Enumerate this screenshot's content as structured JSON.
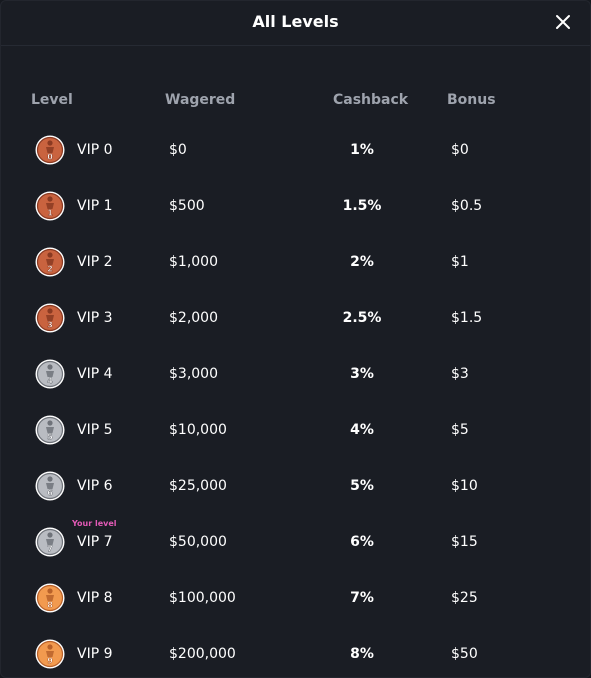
{
  "modal": {
    "title": "All Levels"
  },
  "table": {
    "headers": {
      "level": "Level",
      "wagered": "Wagered",
      "cashback": "Cashback",
      "bonus": "Bonus"
    },
    "your_level_label": "Your level",
    "rows": [
      {
        "level": "VIP 0",
        "wagered": "$0",
        "cashback": "1%",
        "bonus": "$0",
        "digit": "0",
        "tier": "bronze"
      },
      {
        "level": "VIP 1",
        "wagered": "$500",
        "cashback": "1.5%",
        "bonus": "$0.5",
        "digit": "1",
        "tier": "bronze"
      },
      {
        "level": "VIP 2",
        "wagered": "$1,000",
        "cashback": "2%",
        "bonus": "$1",
        "digit": "2",
        "tier": "bronze"
      },
      {
        "level": "VIP 3",
        "wagered": "$2,000",
        "cashback": "2.5%",
        "bonus": "$1.5",
        "digit": "3",
        "tier": "bronze"
      },
      {
        "level": "VIP 4",
        "wagered": "$3,000",
        "cashback": "3%",
        "bonus": "$3",
        "digit": "4",
        "tier": "silver"
      },
      {
        "level": "VIP 5",
        "wagered": "$10,000",
        "cashback": "4%",
        "bonus": "$5",
        "digit": "5",
        "tier": "silver"
      },
      {
        "level": "VIP 6",
        "wagered": "$25,000",
        "cashback": "5%",
        "bonus": "$10",
        "digit": "6",
        "tier": "silver"
      },
      {
        "level": "VIP 7",
        "wagered": "$50,000",
        "cashback": "6%",
        "bonus": "$15",
        "digit": "7",
        "tier": "silver",
        "current": true
      },
      {
        "level": "VIP 8",
        "wagered": "$100,000",
        "cashback": "7%",
        "bonus": "$25",
        "digit": "8",
        "tier": "gold"
      },
      {
        "level": "VIP 9",
        "wagered": "$200,000",
        "cashback": "8%",
        "bonus": "$50",
        "digit": "9",
        "tier": "gold"
      }
    ]
  },
  "colors": {
    "background": "#1a1d24",
    "header_text": "#9ea3ad",
    "your_level": "#e25ab6",
    "bronze": "#c9633f",
    "silver": "#b9bcc2",
    "gold": "#f29a4f"
  },
  "icons": {
    "close": "close-icon",
    "badge": "vip-badge-icon"
  }
}
